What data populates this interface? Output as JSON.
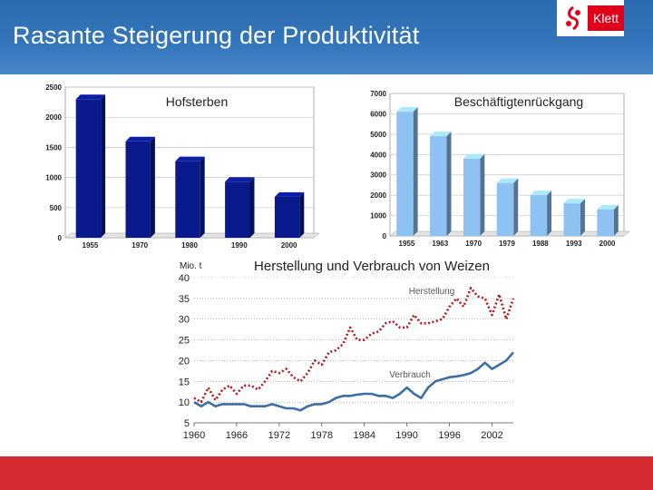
{
  "slide": {
    "title": "Rasante Steigerung der Produktivität",
    "logo_text": "Klett"
  },
  "colors": {
    "header_blue": "#3476bb",
    "footer_red": "#d42b33",
    "logo_red": "#e1001a",
    "bar_dark": "#0a1a8c",
    "bar_light": "#8ec2f2",
    "line_red": "#b3191f",
    "line_blue": "#3a6fa8"
  },
  "chart_data": [
    {
      "type": "bar",
      "title": "Hofsterben",
      "categories": [
        "1955",
        "1970",
        "1980",
        "1990",
        "2000"
      ],
      "values": [
        2300,
        1600,
        1270,
        930,
        680
      ],
      "ylim": [
        0,
        2500
      ],
      "yticks": [
        "0",
        "500",
        "1000",
        "1500",
        "2000",
        "2500"
      ],
      "grid": true
    },
    {
      "type": "bar",
      "title": "Beschäftigtenrückgang",
      "categories": [
        "1955",
        "1963",
        "1970",
        "1979",
        "1988",
        "1993",
        "2000"
      ],
      "values": [
        6100,
        4900,
        3800,
        2600,
        2000,
        1600,
        1300
      ],
      "ylim": [
        0,
        7000
      ],
      "yticks": [
        "0",
        "1000",
        "2000",
        "3000",
        "4000",
        "5000",
        "6000",
        "7000"
      ],
      "grid": true
    },
    {
      "type": "line",
      "title": "Herstellung und Verbrauch von Weizen",
      "ylabel": "Mio. t",
      "ylim": [
        5,
        40
      ],
      "xlim": [
        1960,
        2005
      ],
      "xticks": [
        "1960",
        "1966",
        "1972",
        "1978",
        "1984",
        "1990",
        "1996",
        "2002"
      ],
      "yticks": [
        "5",
        "10",
        "15",
        "20",
        "25",
        "30",
        "35",
        "40"
      ],
      "grid": true,
      "series": [
        {
          "name": "Herstellung",
          "style": "dotted",
          "x": [
            1960,
            1961,
            1962,
            1963,
            1964,
            1965,
            1966,
            1967,
            1968,
            1969,
            1970,
            1971,
            1972,
            1973,
            1974,
            1975,
            1976,
            1977,
            1978,
            1979,
            1980,
            1981,
            1982,
            1983,
            1984,
            1985,
            1986,
            1987,
            1988,
            1989,
            1990,
            1991,
            1992,
            1993,
            1994,
            1995,
            1996,
            1997,
            1998,
            1999,
            2000,
            2001,
            2002,
            2003,
            2004,
            2005
          ],
          "y": [
            11,
            10,
            13.5,
            10.5,
            13,
            14,
            12,
            14,
            14,
            13,
            15,
            17.5,
            17,
            18,
            16,
            15,
            17,
            20,
            19,
            22,
            22.5,
            24,
            28,
            25,
            25,
            26.5,
            27,
            29,
            29.5,
            28,
            28,
            31,
            29,
            29,
            29.5,
            30,
            33,
            35,
            33,
            37.5,
            35.5,
            35,
            31,
            36,
            30,
            35
          ]
        },
        {
          "name": "Verbrauch",
          "style": "solid",
          "x": [
            1960,
            1961,
            1962,
            1963,
            1964,
            1965,
            1966,
            1967,
            1968,
            1969,
            1970,
            1971,
            1972,
            1973,
            1974,
            1975,
            1976,
            1977,
            1978,
            1979,
            1980,
            1981,
            1982,
            1983,
            1984,
            1985,
            1986,
            1987,
            1988,
            1989,
            1990,
            1991,
            1992,
            1993,
            1994,
            1995,
            1996,
            1997,
            1998,
            1999,
            2000,
            2001,
            2002,
            2003,
            2004,
            2005
          ],
          "y": [
            10,
            9,
            10,
            9,
            9.5,
            9.5,
            9.5,
            9.5,
            9,
            9,
            9,
            9.5,
            9,
            8.5,
            8.5,
            8,
            9,
            9.5,
            9.5,
            10,
            11,
            11.5,
            11.5,
            11.8,
            12,
            12,
            11.5,
            11.5,
            11,
            12,
            13.5,
            12,
            11,
            13.5,
            15,
            15.5,
            16,
            16.2,
            16.5,
            17,
            18,
            19.5,
            18,
            19,
            20,
            22
          ]
        }
      ]
    }
  ]
}
